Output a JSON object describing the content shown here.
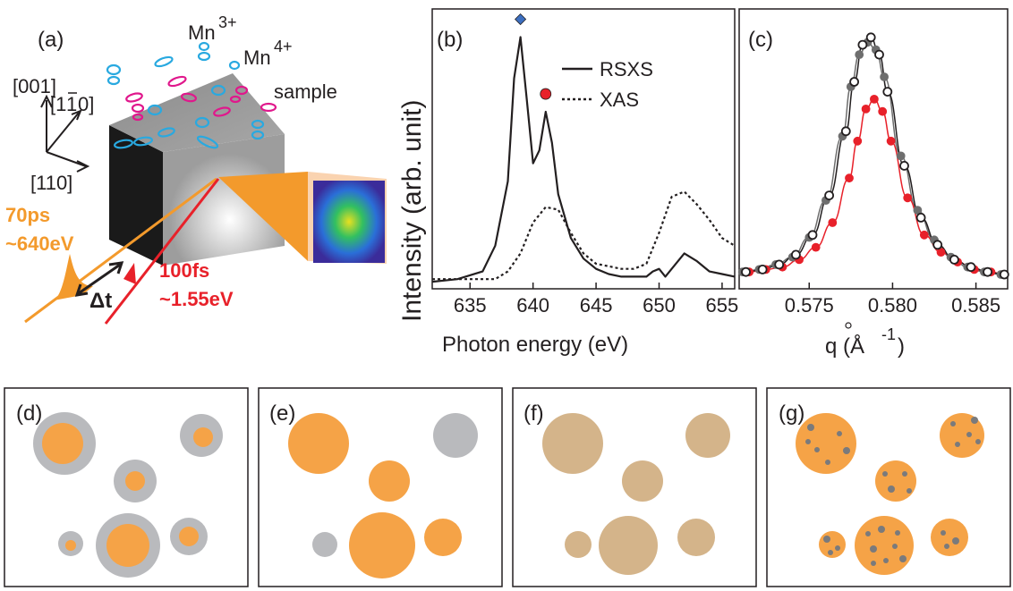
{
  "panel_a": {
    "label": "(a)",
    "axis_001": "[001]",
    "axis_1m10": "[1",
    "axis_1m10_bar": "1",
    "axis_1m10_end": "0]",
    "axis_110": "[110]",
    "mn3": "Mn",
    "mn3_sup": "3+",
    "mn4": "Mn",
    "mn4_sup": "4+",
    "sample": "sample",
    "xray_pulse": "70ps",
    "xray_energy": "~640eV",
    "laser_pulse": "100fs",
    "laser_energy": "~1.55eV",
    "delay": "Δt",
    "colors": {
      "xray": "#f39a2c",
      "laser": "#e8212a",
      "mn3_orbital": "#29a9e0",
      "mn4_orbital": "#e0188c"
    }
  },
  "panel_b": {
    "label": "(b)",
    "legend_rsxs": "RSXS",
    "legend_xas": "XAS",
    "ylabel": "Intensity (arb. unit)",
    "xlabel": "Photon energy (eV)",
    "x_ticks": [
      "635",
      "640",
      "645",
      "650",
      "655"
    ],
    "marker_diamond_color": "#3c6fc0",
    "marker_circle_color": "#e8212a"
  },
  "panel_c": {
    "label": "(c)",
    "xlabel": "q (Å",
    "xlabel_sup": "-1",
    "xlabel_end": ")",
    "x_ticks": [
      "0.575",
      "0.580",
      "0.585"
    ]
  },
  "panels_bottom": [
    {
      "label": "(d)"
    },
    {
      "label": "(e)"
    },
    {
      "label": "(f)"
    },
    {
      "label": "(g)"
    }
  ],
  "chart_data": [
    {
      "type": "line",
      "panel": "(b)",
      "xlabel": "Photon energy (eV)",
      "ylabel": "Intensity (arb. unit)",
      "xlim": [
        632,
        656
      ],
      "ylim": [
        0,
        1.0
      ],
      "series": [
        {
          "name": "RSXS",
          "style": "solid",
          "x": [
            632,
            634,
            636,
            637,
            638,
            638.5,
            639,
            639.5,
            640,
            640.5,
            641,
            641.5,
            642,
            643,
            644,
            645,
            646,
            647,
            648,
            649,
            649.5,
            650,
            650.5,
            651,
            652,
            653,
            654,
            655,
            656
          ],
          "y": [
            0.01,
            0.02,
            0.05,
            0.15,
            0.4,
            0.8,
            0.96,
            0.72,
            0.47,
            0.52,
            0.67,
            0.55,
            0.35,
            0.18,
            0.1,
            0.06,
            0.04,
            0.03,
            0.03,
            0.03,
            0.05,
            0.06,
            0.03,
            0.06,
            0.12,
            0.09,
            0.05,
            0.04,
            0.03
          ]
        },
        {
          "name": "XAS",
          "style": "dotted",
          "x": [
            632,
            634,
            636,
            637,
            638,
            639,
            640,
            641,
            642,
            643,
            644,
            645,
            646,
            647,
            648,
            649,
            650,
            651,
            652,
            653,
            654,
            655,
            656
          ],
          "y": [
            0.02,
            0.02,
            0.02,
            0.02,
            0.05,
            0.12,
            0.24,
            0.3,
            0.29,
            0.2,
            0.12,
            0.08,
            0.07,
            0.06,
            0.06,
            0.08,
            0.2,
            0.34,
            0.36,
            0.31,
            0.25,
            0.18,
            0.15
          ]
        }
      ],
      "markers": [
        {
          "symbol": "diamond",
          "x": 639.0,
          "color": "#3c6fc0"
        },
        {
          "symbol": "circle",
          "x": 641.0,
          "color": "#e8212a"
        }
      ]
    },
    {
      "type": "scatter",
      "panel": "(c)",
      "xlabel": "q (Å-1)",
      "xlim": [
        0.5708,
        0.5869
      ],
      "ylim": [
        0,
        1.05
      ],
      "series": [
        {
          "style": "open-black",
          "x": [
            0.5712,
            0.5722,
            0.5732,
            0.5742,
            0.5752,
            0.5762,
            0.5772,
            0.5777,
            0.5782,
            0.5787,
            0.5792,
            0.5797,
            0.5807,
            0.5817,
            0.5827,
            0.5837,
            0.5847,
            0.5857,
            0.5867
          ],
          "y": [
            0.05,
            0.06,
            0.08,
            0.12,
            0.2,
            0.36,
            0.62,
            0.82,
            0.97,
            1.0,
            0.93,
            0.78,
            0.48,
            0.27,
            0.16,
            0.1,
            0.07,
            0.05,
            0.04
          ]
        },
        {
          "style": "filled-gray",
          "x": [
            0.571,
            0.572,
            0.573,
            0.574,
            0.575,
            0.576,
            0.577,
            0.5775,
            0.578,
            0.5785,
            0.579,
            0.5795,
            0.5805,
            0.5815,
            0.5825,
            0.5835,
            0.5845,
            0.5855,
            0.5865
          ],
          "y": [
            0.05,
            0.06,
            0.08,
            0.11,
            0.19,
            0.34,
            0.6,
            0.8,
            0.93,
            0.98,
            0.95,
            0.84,
            0.52,
            0.3,
            0.18,
            0.11,
            0.07,
            0.05,
            0.04
          ]
        },
        {
          "style": "filled-red",
          "x": [
            0.5714,
            0.5724,
            0.5734,
            0.5744,
            0.5754,
            0.5764,
            0.5774,
            0.5779,
            0.5784,
            0.5789,
            0.5794,
            0.5799,
            0.5809,
            0.5819,
            0.5829,
            0.5839,
            0.5849,
            0.5859,
            0.5867
          ],
          "y": [
            0.05,
            0.06,
            0.07,
            0.1,
            0.15,
            0.25,
            0.43,
            0.58,
            0.71,
            0.75,
            0.7,
            0.58,
            0.35,
            0.2,
            0.13,
            0.09,
            0.06,
            0.05,
            0.04
          ]
        }
      ]
    }
  ]
}
